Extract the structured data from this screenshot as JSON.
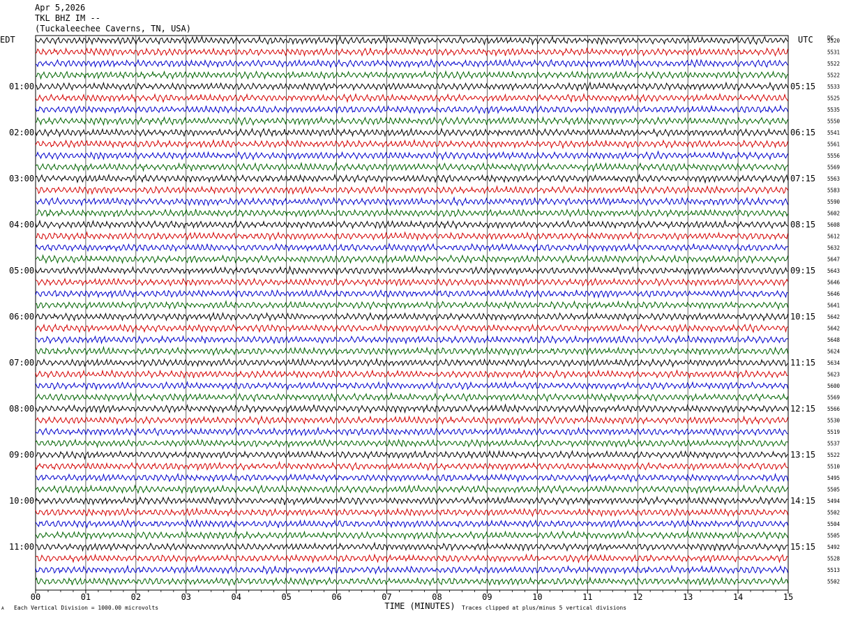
{
  "header": {
    "date": "Apr 5,2026",
    "station": "TKL BHZ IM --",
    "location": "(Tuckaleechee Caverns, TN, USA)"
  },
  "left_timezone": "EDT",
  "right_timezone": "UTC",
  "dc_header": "DC",
  "footer": {
    "scale_note": "Each Vertical Division = 1000.00 microvolts",
    "clip_note": "Traces clipped at plus/minus 5 vertical divisions",
    "corner_mark": "A"
  },
  "colors": {
    "trace_cycle": [
      "#000000",
      "#d40000",
      "#0000cc",
      "#006400"
    ],
    "grid": "#000000",
    "background": "#ffffff"
  },
  "chart_data": {
    "type": "line",
    "title": "",
    "xlabel": "TIME (MINUTES)",
    "ylabel": "",
    "xlim": [
      0,
      15
    ],
    "x_ticks": [
      "00",
      "01",
      "02",
      "03",
      "04",
      "05",
      "06",
      "07",
      "08",
      "09",
      "10",
      "11",
      "12",
      "13",
      "14",
      "15"
    ],
    "left_hour_labels": [
      "01:00",
      "02:00",
      "03:00",
      "04:00",
      "05:00",
      "06:00",
      "07:00",
      "08:00",
      "09:00",
      "10:00",
      "11:00"
    ],
    "right_hour_labels": [
      "05:15",
      "06:15",
      "07:15",
      "08:15",
      "09:15",
      "10:15",
      "11:15",
      "12:15",
      "13:15",
      "14:15",
      "15:15"
    ],
    "traces_per_hour": 4,
    "dc_values": [
      "5520",
      "5531",
      "5522",
      "5522",
      "5533",
      "5525",
      "5535",
      "5550",
      "5541",
      "5561",
      "5556",
      "5569",
      "5563",
      "5583",
      "5590",
      "5602",
      "5608",
      "5612",
      "5632",
      "5647",
      "5643",
      "5646",
      "5646",
      "5641",
      "5642",
      "5642",
      "5648",
      "5624",
      "5634",
      "5623",
      "5600",
      "5569",
      "5566",
      "5530",
      "5519",
      "5537",
      "5522",
      "5510",
      "5495",
      "5505",
      "5494",
      "5502",
      "5504",
      "5505",
      "5492",
      "5528",
      "5513",
      "5502"
    ],
    "grid": true
  }
}
